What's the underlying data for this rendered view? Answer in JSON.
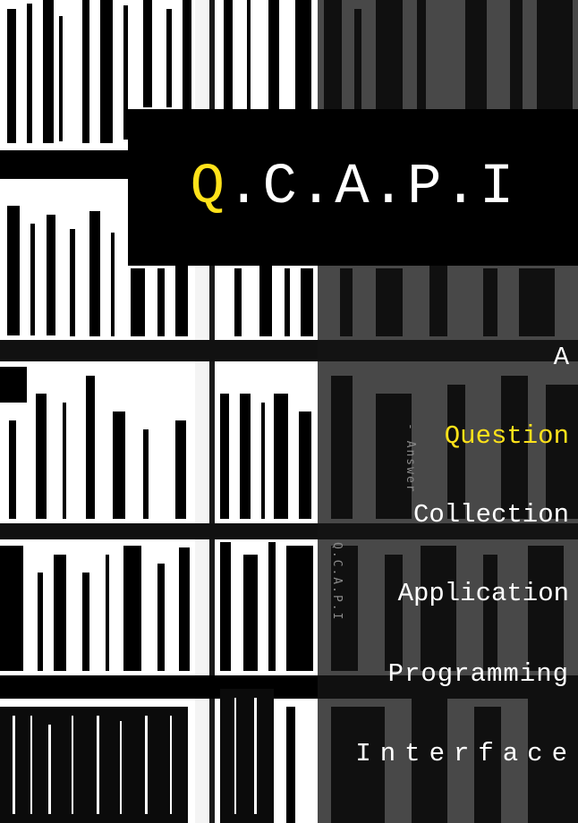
{
  "cover": {
    "title_first_letter": "Q",
    "title_rest": ".C.A.P.I",
    "expansion": [
      "A",
      "Question",
      "Collection",
      "Application",
      "Programming",
      "Interface"
    ],
    "vertical_text_1": "- Answer",
    "vertical_text_2": "Q.C.A.P.I"
  },
  "colors": {
    "accent": "#ffe21a",
    "title_box": "#000000",
    "text": "#ffffff"
  }
}
